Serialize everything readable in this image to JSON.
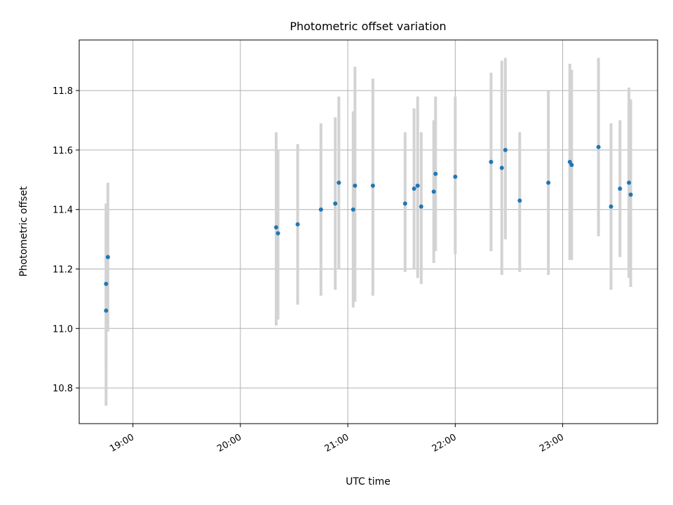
{
  "chart_data": {
    "type": "scatter",
    "title": "Photometric offset variation",
    "xlabel": "UTC time",
    "ylabel": "Photometric offset",
    "x_axis": {
      "kind": "time",
      "unit": "hours UTC",
      "range": [
        "18:30",
        "23:53"
      ],
      "ticks": [
        "19:00",
        "20:00",
        "21:00",
        "22:00",
        "23:00"
      ]
    },
    "y_axis": {
      "range": [
        10.68,
        11.97
      ],
      "ticks": [
        "10.8",
        "11.0",
        "11.2",
        "11.4",
        "11.6",
        "11.8"
      ]
    },
    "grid": true,
    "colors": {
      "marker": "#1f77b4",
      "errorbar": "#d3d3d3",
      "grid": "#b0b0b0"
    },
    "series": [
      {
        "points": [
          {
            "x": "18:45",
            "y": 11.06,
            "ylo": 10.74,
            "yhi": 11.38
          },
          {
            "x": "18:45",
            "y": 11.15,
            "ylo": 10.88,
            "yhi": 11.42
          },
          {
            "x": "18:46",
            "y": 11.24,
            "ylo": 10.99,
            "yhi": 11.49
          },
          {
            "x": "20:20",
            "y": 11.34,
            "ylo": 11.01,
            "yhi": 11.66
          },
          {
            "x": "20:21",
            "y": 11.32,
            "ylo": 11.03,
            "yhi": 11.6
          },
          {
            "x": "20:32",
            "y": 11.35,
            "ylo": 11.08,
            "yhi": 11.62
          },
          {
            "x": "20:45",
            "y": 11.4,
            "ylo": 11.11,
            "yhi": 11.69
          },
          {
            "x": "20:53",
            "y": 11.42,
            "ylo": 11.13,
            "yhi": 11.71
          },
          {
            "x": "20:55",
            "y": 11.49,
            "ylo": 11.2,
            "yhi": 11.78
          },
          {
            "x": "21:03",
            "y": 11.4,
            "ylo": 11.07,
            "yhi": 11.73
          },
          {
            "x": "21:04",
            "y": 11.48,
            "ylo": 11.09,
            "yhi": 11.88
          },
          {
            "x": "21:14",
            "y": 11.48,
            "ylo": 11.11,
            "yhi": 11.84
          },
          {
            "x": "21:32",
            "y": 11.42,
            "ylo": 11.19,
            "yhi": 11.66
          },
          {
            "x": "21:37",
            "y": 11.47,
            "ylo": 11.2,
            "yhi": 11.74
          },
          {
            "x": "21:39",
            "y": 11.48,
            "ylo": 11.17,
            "yhi": 11.78
          },
          {
            "x": "21:41",
            "y": 11.41,
            "ylo": 11.15,
            "yhi": 11.66
          },
          {
            "x": "21:48",
            "y": 11.46,
            "ylo": 11.22,
            "yhi": 11.7
          },
          {
            "x": "21:49",
            "y": 11.52,
            "ylo": 11.26,
            "yhi": 11.78
          },
          {
            "x": "22:00",
            "y": 11.51,
            "ylo": 11.25,
            "yhi": 11.78
          },
          {
            "x": "22:20",
            "y": 11.56,
            "ylo": 11.26,
            "yhi": 11.86
          },
          {
            "x": "22:26",
            "y": 11.54,
            "ylo": 11.18,
            "yhi": 11.9
          },
          {
            "x": "22:28",
            "y": 11.6,
            "ylo": 11.3,
            "yhi": 11.91
          },
          {
            "x": "22:36",
            "y": 11.43,
            "ylo": 11.19,
            "yhi": 11.66
          },
          {
            "x": "22:52",
            "y": 11.49,
            "ylo": 11.18,
            "yhi": 11.8
          },
          {
            "x": "23:04",
            "y": 11.56,
            "ylo": 11.23,
            "yhi": 11.89
          },
          {
            "x": "23:05",
            "y": 11.55,
            "ylo": 11.23,
            "yhi": 11.87
          },
          {
            "x": "23:20",
            "y": 11.61,
            "ylo": 11.31,
            "yhi": 11.91
          },
          {
            "x": "23:27",
            "y": 11.41,
            "ylo": 11.13,
            "yhi": 11.69
          },
          {
            "x": "23:32",
            "y": 11.47,
            "ylo": 11.24,
            "yhi": 11.7
          },
          {
            "x": "23:37",
            "y": 11.49,
            "ylo": 11.17,
            "yhi": 11.81
          },
          {
            "x": "23:38",
            "y": 11.45,
            "ylo": 11.14,
            "yhi": 11.77
          }
        ]
      }
    ]
  }
}
